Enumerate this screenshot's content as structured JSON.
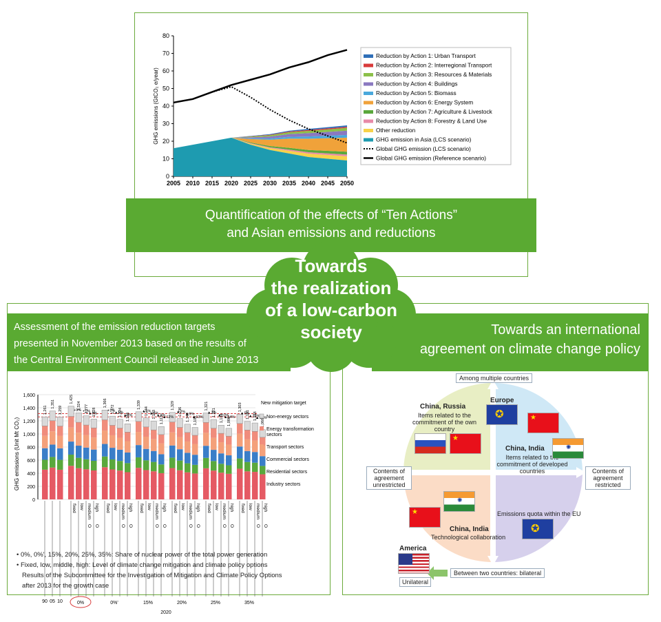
{
  "top_banner": {
    "line1": "Quantification of the effects of “Ten Actions”",
    "line2": "and Asian emissions and reductions"
  },
  "cloud": {
    "line1": "Towards",
    "line2": "the realization",
    "line3": "of a low-carbon",
    "line4": "society"
  },
  "left_banner": {
    "line1": "Assessment of the emission reduction targets",
    "line2": "presented in November 2013 based on the results of",
    "line3": "the Central Environment Council released in June 2013"
  },
  "right_banner": {
    "line1": "Towards an international",
    "line2": "agreement on climate change policy"
  },
  "colors": {
    "green": "#5aaa32",
    "asia": "#1e9bb0",
    "energy": "#f0a23a",
    "industry": "#e55a64",
    "residential": "#5aa83c",
    "commercial": "#3a7ec8",
    "transport": "#f4a07a",
    "energy_transformation": "#f08c7c",
    "non_energy": "#d9d9d9"
  },
  "chart_data": [
    {
      "type": "area",
      "xlabel": "",
      "ylabel": "GHG emissions (GtCO₂ e/year)",
      "ylim": [
        0,
        80
      ],
      "x": [
        2005,
        2010,
        2015,
        2020,
        2025,
        2030,
        2035,
        2040,
        2045,
        2050
      ],
      "yticks": [
        0,
        10,
        20,
        30,
        40,
        50,
        60,
        70,
        80
      ],
      "series": [
        {
          "name": "Global GHG emission (Reference scenario)",
          "values": [
            42,
            44,
            48,
            52,
            55,
            58,
            62,
            65,
            69,
            72
          ]
        },
        {
          "name": "Global GHG emission (LCS scenario)",
          "values": [
            42,
            44,
            48,
            51,
            45,
            38,
            32,
            27,
            23,
            19
          ]
        },
        {
          "name": "GHG emission in Asia (LCS scenario)",
          "values": [
            16,
            18,
            20,
            22,
            18,
            15,
            13,
            11,
            10,
            9
          ]
        }
      ],
      "reduction_total": [
        16,
        18,
        20,
        22,
        23,
        24,
        26,
        27,
        28,
        29
      ],
      "legend": [
        {
          "label": "Reduction by Action 1: Urban Transport",
          "color": "#2f6fb8"
        },
        {
          "label": "Reduction by Action 2: Interregional Transport",
          "color": "#d83a3a"
        },
        {
          "label": "Reduction by Action 3: Resources & Materials",
          "color": "#8cc04a"
        },
        {
          "label": "Reduction by Action 4: Buildings",
          "color": "#8a78c0"
        },
        {
          "label": "Reduction by Action 5: Biomass",
          "color": "#4aa8dc"
        },
        {
          "label": "Reduction by Action 6: Energy System",
          "color": "#f0a23a"
        },
        {
          "label": "Reduction by Action 7: Agriculture & Livestock",
          "color": "#5aa83c"
        },
        {
          "label": "Reduction by Action 8: Forestry & Land Use",
          "color": "#e88aa8"
        },
        {
          "label": "Other reduction",
          "color": "#f7d24a"
        },
        {
          "label": "GHG emission in Asia (LCS scenario)",
          "color": "#1e9bb0"
        },
        {
          "label": "Global GHG emission (LCS scenario)",
          "color": "#000000",
          "style": "dotted"
        },
        {
          "label": "Global GHG emission (Reference scenario)",
          "color": "#000000",
          "style": "solid"
        }
      ]
    },
    {
      "type": "bar",
      "stacked": true,
      "ylabel": "GHG emissions (Unit Mt CO₂)",
      "ylim": [
        0,
        1600
      ],
      "yticks": [
        0,
        200,
        400,
        600,
        800,
        1000,
        1200,
        1400,
        1600
      ],
      "ytick_labels": [
        "0",
        "200",
        "400",
        "600",
        "800",
        "1,000",
        "1,200",
        "1,400",
        "1,600"
      ],
      "base_labels": [
        "90",
        "05",
        "10"
      ],
      "base_totals": [
        "1,261",
        "1,351",
        "1,259"
      ],
      "option_labels": [
        "fixed",
        "low",
        "medium",
        "high"
      ],
      "circle_mark": "O",
      "groups": [
        "0%",
        "0%'",
        "15%",
        "20%",
        "25%",
        "35%"
      ],
      "group_totals": [
        [
          "1,425",
          "1,324",
          "1,277",
          "1,228"
        ],
        [
          "1,366",
          "1,272",
          "1,224",
          "1,155"
        ],
        [
          "1,339",
          "1,244",
          "1,193",
          "1,113"
        ],
        [
          "1,329",
          "1,236",
          "1,149",
          "1,100"
        ],
        [
          "1,321",
          "1,221",
          "1,134",
          "1,086"
        ],
        [
          "1,303",
          "1,191",
          "1,168",
          "1,066"
        ]
      ],
      "change_labels": [
        "+9%",
        "+1%",
        "▲3%",
        "+1%",
        "▲5%",
        "▲8%",
        "▲1%",
        "▲5%",
        "▲8%",
        "▲12%",
        "▲2%",
        "▲9%",
        "▲13%",
        "▲2%",
        "▲10%",
        "▲14%",
        "▲5%",
        "▲12%",
        "▲16%"
      ],
      "year_label": "2020",
      "target_label": "New mitigation target",
      "legend": [
        "Non-energy sectors",
        "Energy transformation sectors",
        "Transport sectors",
        "Commercial sectors",
        "Residential sectors",
        "Industry sectors"
      ]
    }
  ],
  "footnotes": {
    "note1": "• 0%, 0%', 15%, 20%, 25%, 35%: Share of nuclear power of the total power generation",
    "note2": "• Fixed, low, middle, high: Level of climate change mitigation and climate policy options",
    "note3": "Results of the Subcommittee for the Investigation of Mitigation and Climate Policy Options",
    "note4": "after 2013 for the growth case"
  },
  "policy_diagram": {
    "top_axis": "Among multiple countries",
    "bottom_axis": "Between two countries: bilateral",
    "left_axis": "Contents of agreement unrestricted",
    "right_axis": "Contents of agreement restricted",
    "q1_title": "China, Russia",
    "q1_text": "Items related to the commitment of the own country",
    "q2_title": "Europe",
    "q2b_title": "China, India",
    "q2_text": "Items related to the commitment of developed countries",
    "q3_title": "China, India",
    "q3_text": "Technological collaboration",
    "q4_text": "Emissions quota within the EU",
    "america": "America",
    "unilateral": "Unilateral"
  }
}
